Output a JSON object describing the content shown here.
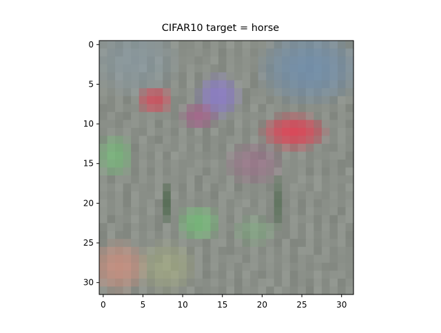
{
  "chart_data": {
    "type": "heatmap",
    "title": "CIFAR10 target = horse",
    "xlabel": "",
    "ylabel": "",
    "grid": false,
    "x_range": [
      -0.5,
      31.5
    ],
    "y_range": [
      31.5,
      -0.5
    ],
    "x_ticks": [
      0,
      5,
      10,
      15,
      20,
      25,
      30
    ],
    "y_ticks": [
      0,
      5,
      10,
      15,
      20,
      25,
      30
    ],
    "pixel_grid": [
      32,
      32
    ],
    "colors": {
      "background": "#8a8f88",
      "sky_blue": "#6f8fb0",
      "violet": "#8c7cc8",
      "magenta": "#b0508c",
      "red": "#d84a5a",
      "green": "#74c078",
      "dark_green": "#3a5a3a",
      "salmon": "#c89080",
      "olive": "#a8b080",
      "gray_blue": "#8aa0b0"
    }
  }
}
